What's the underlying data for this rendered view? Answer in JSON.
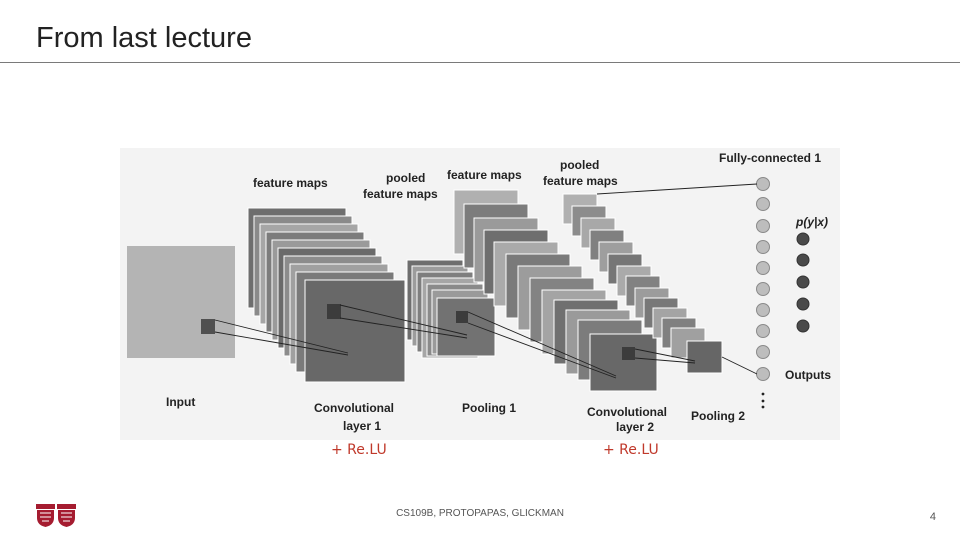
{
  "slide": {
    "title": "From last lecture",
    "footer": "CS109B, PROTOPAPAS, GLICKMAN",
    "page_number": "4",
    "relu_left": "+ Re.LU",
    "relu_right": "+ Re.LU"
  },
  "diagram": {
    "labels": {
      "feature_maps_1": "feature maps",
      "pooled_1_line1": "pooled",
      "pooled_1_line2": "feature maps",
      "feature_maps_2": "feature maps",
      "pooled_2_line1": "pooled",
      "pooled_2_line2": "feature maps",
      "fully_connected": "Fully-connected 1",
      "prob": "p(y|x)",
      "outputs": "Outputs",
      "input": "Input",
      "conv1_line1": "Convolutional",
      "conv1_line2": "layer 1",
      "pool1": "Pooling 1",
      "conv2_line1": "Convolutional",
      "conv2_line2": "layer 2",
      "pool2": "Pooling 2"
    }
  }
}
